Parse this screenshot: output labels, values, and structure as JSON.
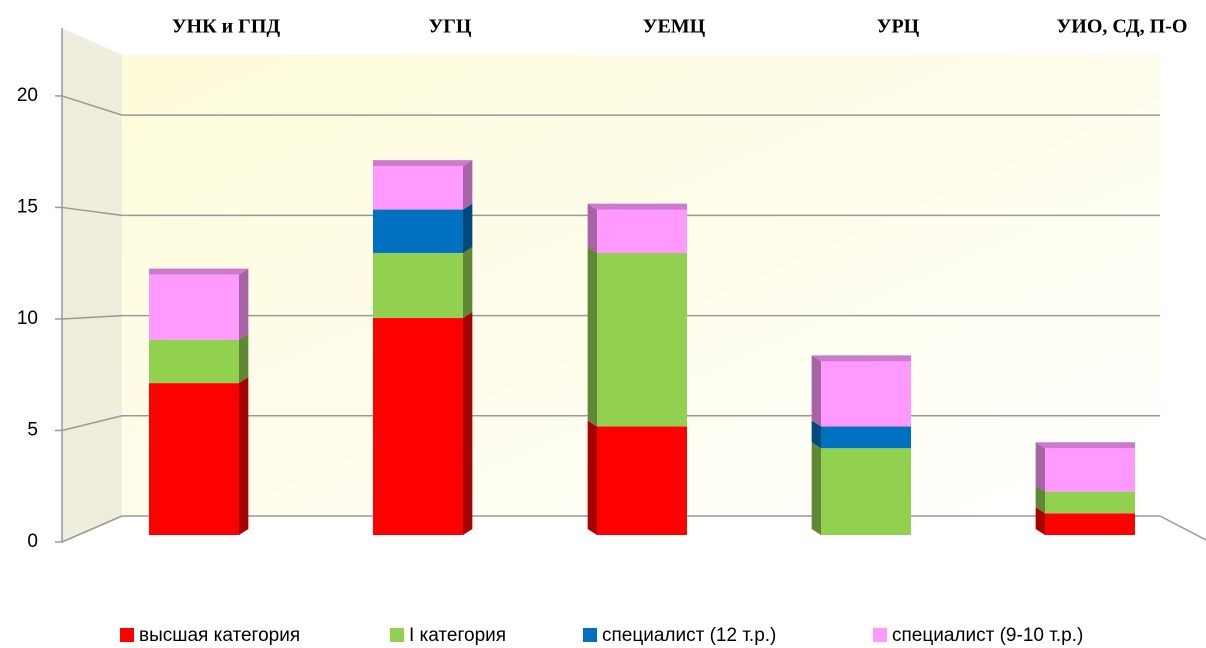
{
  "chart_data": {
    "type": "bar",
    "categories": [
      "УНК и ГПД",
      "УГЦ",
      "УЕМЦ",
      "УРЦ",
      "УИО, СД, П-О"
    ],
    "series": [
      {
        "name": "высшая категория",
        "color": "#ff0000",
        "values": [
          7,
          10,
          5,
          0,
          1
        ]
      },
      {
        "name": "I категория",
        "color": "#92d050",
        "values": [
          2,
          3,
          8,
          4,
          1
        ]
      },
      {
        "name": "специалист (12 т.р.)",
        "color": "#0070c0",
        "values": [
          0,
          2,
          0,
          1,
          0
        ]
      },
      {
        "name": "специалист (9-10 т.р.)",
        "color": "#ff99ff",
        "values": [
          3,
          2,
          2,
          3,
          2
        ]
      }
    ],
    "stacked": true,
    "ylim": [
      0,
      23
    ],
    "yticks": [
      0,
      5,
      10,
      15,
      20
    ],
    "grid": true,
    "legend": "bottom"
  }
}
